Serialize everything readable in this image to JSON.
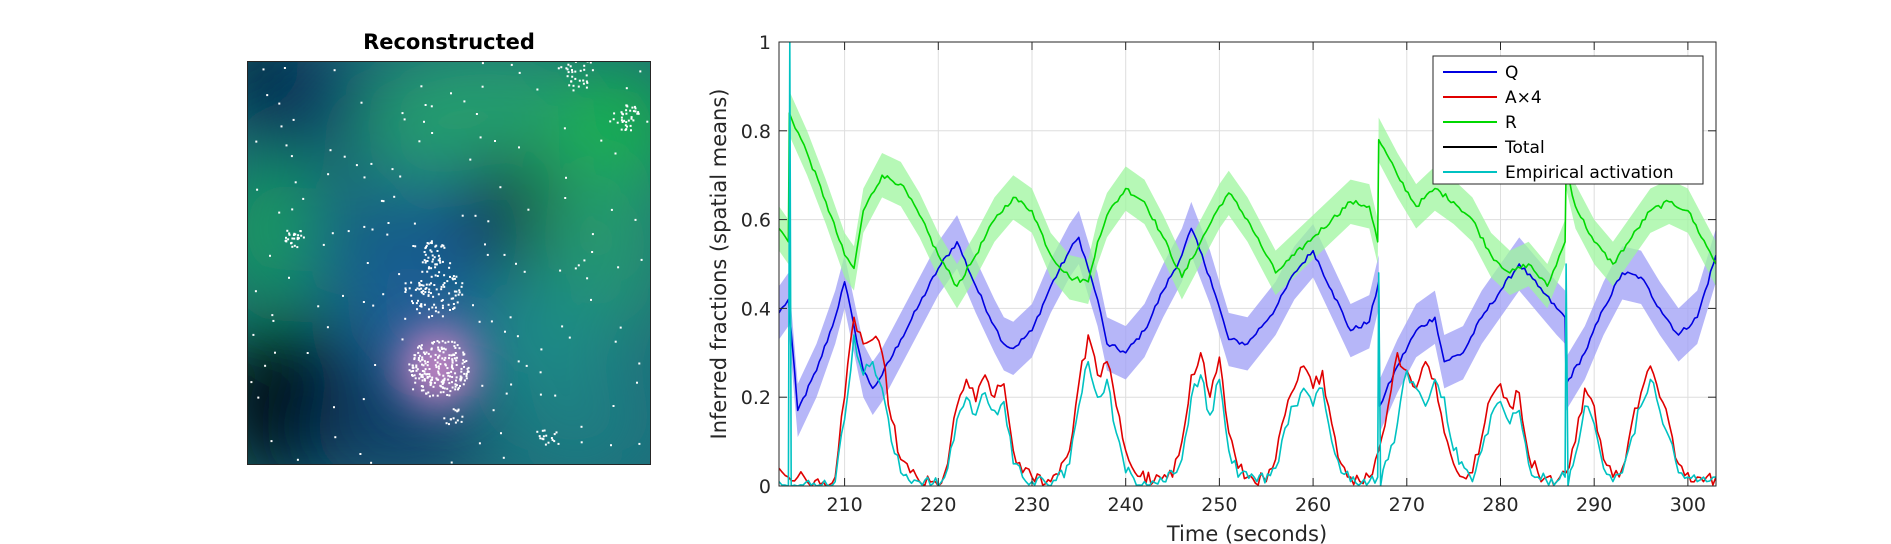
{
  "left_panel": {
    "title": "Reconstructed"
  },
  "chart_data": {
    "type": "line",
    "title": "",
    "xlabel": "Time (seconds)",
    "ylabel": "Inferred fractions (spatial means)",
    "xlim": [
      203,
      303
    ],
    "ylim": [
      0,
      1
    ],
    "xticks": [
      210,
      220,
      230,
      240,
      250,
      260,
      270,
      280,
      290,
      300
    ],
    "yticks": [
      0,
      0.2,
      0.4,
      0.6,
      0.8,
      1
    ],
    "ytick_labels": [
      "0",
      "0.2",
      "0.4",
      "0.6",
      "0.8",
      "1"
    ],
    "grid": true,
    "legend_position": "top-right",
    "series": [
      {
        "name": "Q",
        "color": "#0000e0",
        "band_color": "#9d9df5",
        "band_halfwidth": 0.06,
        "x": [
          203,
          204,
          205,
          207,
          209,
          210,
          211,
          212,
          213,
          214,
          216,
          218,
          220,
          222,
          224,
          226,
          227,
          228,
          230,
          232,
          234,
          235,
          236,
          237,
          238,
          240,
          242,
          244,
          246,
          247,
          249,
          251,
          253,
          256,
          258,
          260,
          262,
          264,
          266,
          267,
          267.1,
          269,
          271,
          273,
          274,
          276,
          278,
          280,
          282,
          284,
          286,
          286.9,
          287,
          289,
          291,
          293,
          295,
          297,
          299,
          301,
          303
        ],
        "y": [
          0.39,
          0.42,
          0.17,
          0.26,
          0.38,
          0.46,
          0.36,
          0.26,
          0.22,
          0.25,
          0.33,
          0.41,
          0.49,
          0.55,
          0.45,
          0.36,
          0.32,
          0.31,
          0.35,
          0.45,
          0.53,
          0.56,
          0.49,
          0.42,
          0.32,
          0.3,
          0.35,
          0.44,
          0.52,
          0.58,
          0.47,
          0.33,
          0.32,
          0.4,
          0.48,
          0.53,
          0.44,
          0.35,
          0.37,
          0.46,
          0.18,
          0.27,
          0.35,
          0.38,
          0.28,
          0.3,
          0.38,
          0.44,
          0.5,
          0.45,
          0.4,
          0.38,
          0.23,
          0.3,
          0.4,
          0.48,
          0.47,
          0.4,
          0.34,
          0.38,
          0.52
        ]
      },
      {
        "name": "A×4",
        "color": "#e00000",
        "x": [
          203,
          204,
          205,
          206,
          208,
          209,
          210,
          211,
          212,
          213,
          214,
          215,
          216,
          217,
          218,
          220,
          221,
          222,
          223,
          224,
          225,
          226,
          227,
          228,
          229,
          230,
          232,
          234,
          235,
          236,
          237,
          238,
          239,
          240,
          241,
          243,
          245,
          246,
          247,
          248,
          249,
          250,
          251,
          252,
          253,
          255,
          256,
          257,
          258,
          259,
          260,
          261,
          262,
          263,
          264,
          265,
          266,
          267,
          268,
          269,
          270,
          271,
          272,
          273,
          274,
          275,
          276,
          277,
          278,
          279,
          280,
          281,
          282,
          283,
          284,
          285,
          286,
          287,
          288,
          289,
          290,
          291,
          292,
          293,
          294,
          295,
          296,
          297,
          298,
          299,
          300,
          301,
          302,
          303
        ],
        "y": [
          0.04,
          0.02,
          0.02,
          0.01,
          0.0,
          0.02,
          0.2,
          0.38,
          0.32,
          0.33,
          0.3,
          0.15,
          0.06,
          0.03,
          0.01,
          0.0,
          0.05,
          0.18,
          0.24,
          0.19,
          0.25,
          0.2,
          0.23,
          0.08,
          0.03,
          0.02,
          0.01,
          0.08,
          0.23,
          0.34,
          0.25,
          0.28,
          0.18,
          0.08,
          0.03,
          0.01,
          0.02,
          0.1,
          0.25,
          0.3,
          0.2,
          0.29,
          0.12,
          0.04,
          0.02,
          0.01,
          0.06,
          0.16,
          0.22,
          0.27,
          0.22,
          0.26,
          0.14,
          0.05,
          0.02,
          0.01,
          0.02,
          0.08,
          0.18,
          0.3,
          0.26,
          0.22,
          0.28,
          0.24,
          0.12,
          0.05,
          0.02,
          0.03,
          0.11,
          0.2,
          0.23,
          0.18,
          0.21,
          0.07,
          0.03,
          0.02,
          0.01,
          0.03,
          0.1,
          0.22,
          0.18,
          0.06,
          0.02,
          0.04,
          0.14,
          0.21,
          0.27,
          0.2,
          0.14,
          0.05,
          0.03,
          0.02,
          0.02,
          0.02
        ]
      },
      {
        "name": "R",
        "color": "#00d800",
        "band_color": "#9ef59e",
        "band_halfwidth": 0.05,
        "x": [
          203,
          204,
          204.1,
          206,
          208,
          210,
          211,
          212,
          214,
          216,
          218,
          220,
          222,
          224,
          226,
          228,
          230,
          232,
          234,
          236,
          237,
          238,
          240,
          242,
          244,
          246,
          248,
          250,
          251,
          253,
          255,
          256,
          258,
          260,
          262,
          264,
          266,
          266.9,
          267,
          269,
          271,
          273,
          275,
          277,
          279,
          281,
          283,
          285,
          286.9,
          287,
          288,
          290,
          292,
          294,
          296,
          298,
          300,
          302,
          303
        ],
        "y": [
          0.58,
          0.55,
          0.84,
          0.75,
          0.64,
          0.52,
          0.49,
          0.62,
          0.7,
          0.68,
          0.61,
          0.52,
          0.45,
          0.52,
          0.6,
          0.65,
          0.62,
          0.52,
          0.47,
          0.46,
          0.55,
          0.61,
          0.67,
          0.64,
          0.56,
          0.47,
          0.55,
          0.63,
          0.66,
          0.6,
          0.52,
          0.48,
          0.52,
          0.56,
          0.6,
          0.64,
          0.63,
          0.55,
          0.78,
          0.7,
          0.63,
          0.67,
          0.64,
          0.6,
          0.52,
          0.48,
          0.5,
          0.45,
          0.55,
          0.72,
          0.63,
          0.55,
          0.5,
          0.56,
          0.62,
          0.64,
          0.62,
          0.54,
          0.5
        ]
      },
      {
        "name": "Total",
        "color": "#000000",
        "x": [],
        "y": []
      },
      {
        "name": "Empirical activation",
        "color": "#00c2c2",
        "x": [
          203,
          204,
          204.15,
          204.3,
          205,
          207,
          209,
          210,
          211,
          212,
          213,
          214,
          215,
          216,
          218,
          220,
          221,
          222,
          223,
          224,
          225,
          226,
          227,
          228,
          229,
          230,
          232,
          234,
          235,
          236,
          237,
          238,
          239,
          240,
          242,
          244,
          246,
          247,
          248,
          249,
          250,
          251,
          252,
          254,
          256,
          257,
          258,
          259,
          260,
          261,
          262,
          263,
          264,
          266,
          266.9,
          267,
          267.2,
          268,
          269,
          270,
          271,
          272,
          273,
          274,
          275,
          277,
          278,
          279,
          280,
          281,
          282,
          283,
          284,
          286,
          286.9,
          287,
          287.2,
          288,
          289,
          290,
          291,
          292,
          293,
          294,
          295,
          296,
          297,
          298,
          299,
          300,
          301,
          302,
          303
        ],
        "y": [
          0.01,
          0.0,
          1.0,
          0.0,
          0.0,
          0.0,
          0.01,
          0.15,
          0.34,
          0.25,
          0.28,
          0.22,
          0.1,
          0.03,
          0.01,
          0.0,
          0.04,
          0.15,
          0.2,
          0.16,
          0.21,
          0.17,
          0.19,
          0.05,
          0.02,
          0.01,
          0.0,
          0.05,
          0.18,
          0.28,
          0.2,
          0.24,
          0.12,
          0.03,
          0.01,
          0.01,
          0.06,
          0.2,
          0.25,
          0.16,
          0.24,
          0.08,
          0.02,
          0.01,
          0.04,
          0.13,
          0.18,
          0.22,
          0.18,
          0.22,
          0.1,
          0.03,
          0.01,
          0.01,
          0.02,
          0.48,
          0.0,
          0.06,
          0.14,
          0.26,
          0.22,
          0.18,
          0.24,
          0.2,
          0.08,
          0.01,
          0.08,
          0.16,
          0.19,
          0.14,
          0.17,
          0.05,
          0.02,
          0.01,
          0.02,
          0.5,
          0.0,
          0.07,
          0.18,
          0.14,
          0.04,
          0.01,
          0.03,
          0.11,
          0.18,
          0.24,
          0.17,
          0.11,
          0.03,
          0.02,
          0.01,
          0.01,
          0.02
        ]
      }
    ]
  }
}
